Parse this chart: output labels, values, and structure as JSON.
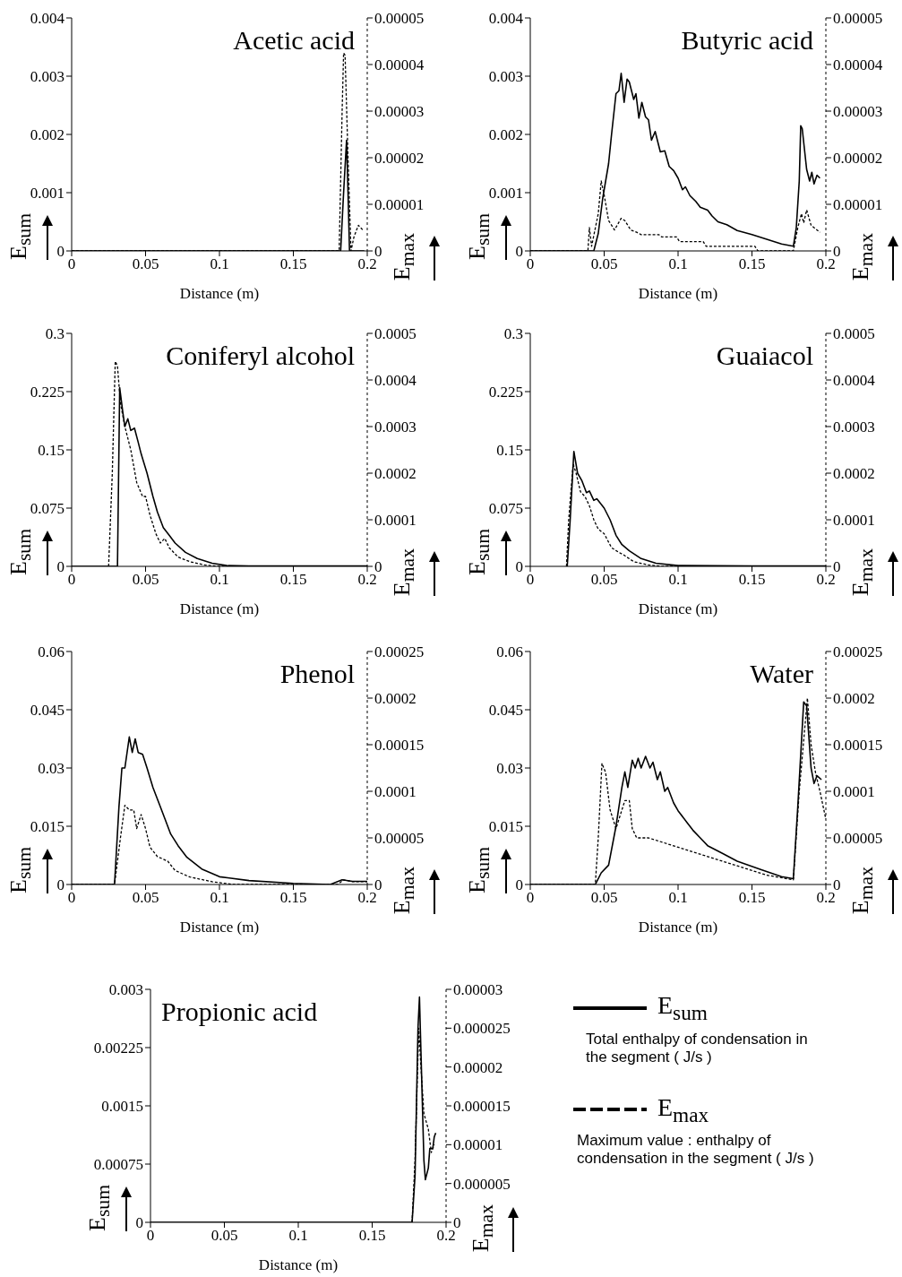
{
  "chart_data": [
    {
      "type": "line",
      "title": "Acetic acid",
      "xlabel": "Distance (m)",
      "ylabel": "E$_{sum}$",
      "y2label": "E$_{max}$",
      "xlim": [
        0,
        0.2
      ],
      "xticks": [
        0,
        0.05,
        0.1,
        0.15,
        0.2
      ],
      "ylim": [
        0,
        0.004
      ],
      "yticks": [
        0,
        0.001,
        0.002,
        0.003,
        0.004
      ],
      "y2lim": [
        0,
        5e-05
      ],
      "y2ticks": [
        0,
        {
          "value": 1e-05,
          "label": "0.00001"
        },
        {
          "value": 2e-05,
          "label": "0.00002"
        },
        {
          "value": 3e-05,
          "label": "0.00003"
        },
        {
          "value": 4e-05,
          "label": "0.00004"
        },
        {
          "value": 5e-05,
          "label": "0.00005"
        }
      ],
      "series": [
        {
          "color": "#000000",
          "line_style": "solid",
          "x": [
            0,
            0.182,
            0.184,
            0.186,
            0.187,
            0.188,
            0.192,
            0.195,
            0.198
          ],
          "values": [
            0,
            0,
            0.001,
            0.0019,
            0.001,
            0,
            0,
            0,
            0
          ]
        },
        {
          "axis": "y2",
          "color": "#000000",
          "line_style": "dashed",
          "x": [
            0,
            0.181,
            0.183,
            0.184,
            0.185,
            0.187,
            0.189,
            0.191,
            0.194,
            0.197
          ],
          "values": [
            0,
            0,
            3e-05,
            4.25e-05,
            4.2e-05,
            2e-05,
            0,
            3e-06,
            5.5e-06,
            4.5e-06
          ]
        }
      ]
    },
    {
      "type": "line",
      "title": "Butyric acid",
      "xlabel": "Distance (m)",
      "ylabel": "E$_{sum}$",
      "y2label": "E$_{max}$",
      "xlim": [
        0,
        0.2
      ],
      "xticks": [
        0,
        0.05,
        0.1,
        0.15,
        0.2
      ],
      "ylim": [
        0,
        0.004
      ],
      "yticks": [
        0,
        0.001,
        0.002,
        0.003,
        0.004
      ],
      "y2lim": [
        0,
        5e-05
      ],
      "y2ticks": [
        0,
        {
          "value": 1e-05,
          "label": "0.00001"
        },
        {
          "value": 2e-05,
          "label": "0.00002"
        },
        {
          "value": 3e-05,
          "label": "0.00003"
        },
        {
          "value": 4e-05,
          "label": "0.00004"
        },
        {
          "value": 5e-05,
          "label": "0.00005"
        }
      ],
      "series": [
        {
          "color": "#000000",
          "line_style": "solid",
          "x": [
            0,
            0.043,
            0.046,
            0.049,
            0.053,
            0.055,
            0.058,
            0.06,
            0.0615,
            0.0635,
            0.0655,
            0.067,
            0.07,
            0.0715,
            0.0735,
            0.0755,
            0.078,
            0.08,
            0.082,
            0.0845,
            0.088,
            0.091,
            0.094,
            0.097,
            0.1,
            0.103,
            0.105,
            0.108,
            0.112,
            0.115,
            0.12,
            0.123,
            0.127,
            0.133,
            0.14,
            0.15,
            0.16,
            0.17,
            0.178,
            0.18,
            0.182,
            0.183,
            0.184,
            0.187,
            0.189,
            0.1905,
            0.192,
            0.194,
            0.196
          ],
          "values": [
            0,
            0,
            0.0003,
            0.0009,
            0.0015,
            0.002,
            0.0027,
            0.00275,
            0.00305,
            0.00255,
            0.00295,
            0.0029,
            0.0026,
            0.0027,
            0.00228,
            0.00255,
            0.0023,
            0.00225,
            0.0019,
            0.00205,
            0.0017,
            0.00172,
            0.00145,
            0.00138,
            0.00125,
            0.00105,
            0.0011,
            0.00095,
            0.00085,
            0.00075,
            0.0007,
            0.0006,
            0.0005,
            0.00045,
            0.00035,
            0.00028,
            0.0002,
            0.00012,
            8e-05,
            0.0004,
            0.0012,
            0.00215,
            0.0021,
            0.0014,
            0.0012,
            0.00135,
            0.00115,
            0.0013,
            0.00125
          ]
        },
        {
          "axis": "y2",
          "color": "#000000",
          "line_style": "dashed",
          "x": [
            0,
            0.039,
            0.04,
            0.0415,
            0.046,
            0.048,
            0.05,
            0.053,
            0.057,
            0.0615,
            0.064,
            0.068,
            0.072,
            0.075,
            0.087,
            0.089,
            0.099,
            0.101,
            0.117,
            0.119,
            0.152,
            0.154,
            0.178,
            0.181,
            0.1835,
            0.185,
            0.187,
            0.19,
            0.196
          ],
          "values": [
            0,
            0,
            5e-06,
            1e-06,
            8e-06,
            1.5e-05,
            1.2e-05,
            6.5e-06,
            4.5e-06,
            7e-06,
            6.5e-06,
            4.5e-06,
            4e-06,
            3.5e-06,
            3.5e-06,
            3e-06,
            3e-06,
            2e-06,
            2e-06,
            1e-06,
            1e-06,
            0,
            0,
            5e-06,
            8e-06,
            6e-06,
            8.8e-06,
            5.5e-06,
            4e-06
          ]
        }
      ]
    },
    {
      "type": "line",
      "title": "Coniferyl alcohol",
      "xlabel": "Distance (m)",
      "ylabel": "E$_{sum}$",
      "y2label": "E$_{max}$",
      "xlim": [
        0,
        0.2
      ],
      "xticks": [
        0,
        0.05,
        0.1,
        0.15,
        0.2
      ],
      "ylim": [
        0,
        0.3
      ],
      "yticks": [
        0,
        0.075,
        0.15,
        0.225,
        0.3
      ],
      "y2lim": [
        0,
        0.0005
      ],
      "y2ticks": [
        0,
        0.0001,
        0.0002,
        0.0003,
        0.0004,
        0.0005
      ],
      "series": [
        {
          "color": "#000000",
          "line_style": "solid",
          "x": [
            0,
            0.031,
            0.0325,
            0.0345,
            0.036,
            0.038,
            0.04,
            0.0425,
            0.045,
            0.047,
            0.051,
            0.055,
            0.058,
            0.062,
            0.066,
            0.07,
            0.077,
            0.085,
            0.095,
            0.105,
            0.12,
            0.2
          ],
          "values": [
            0,
            0,
            0.23,
            0.2,
            0.18,
            0.19,
            0.175,
            0.178,
            0.16,
            0.145,
            0.12,
            0.09,
            0.07,
            0.05,
            0.04,
            0.03,
            0.018,
            0.01,
            0.004,
            0.001,
            0.0005,
            0.0005
          ]
        },
        {
          "axis": "y2",
          "color": "#000000",
          "line_style": "dashed",
          "x": [
            0.025,
            0.0275,
            0.0295,
            0.031,
            0.033,
            0.036,
            0.04,
            0.044,
            0.048,
            0.05,
            0.053,
            0.057,
            0.06,
            0.063,
            0.066,
            0.072,
            0.08,
            0.09,
            0.1,
            0.2
          ],
          "values": [
            0,
            0.0002,
            0.00044,
            0.00043,
            0.00035,
            0.0003,
            0.00025,
            0.00018,
            0.00015,
            0.00015,
            0.00011,
            7e-05,
            5e-05,
            6e-05,
            4e-05,
            2e-05,
            1e-05,
            3e-06,
            0,
            0
          ]
        }
      ]
    },
    {
      "type": "line",
      "title": "Guaiacol",
      "xlabel": "Distance (m)",
      "ylabel": "E$_{sum}$",
      "y2label": "E$_{max}$",
      "xlim": [
        0,
        0.2
      ],
      "xticks": [
        0,
        0.05,
        0.1,
        0.15,
        0.2
      ],
      "ylim": [
        0,
        0.3
      ],
      "yticks": [
        0,
        0.075,
        0.15,
        0.225,
        0.3
      ],
      "y2lim": [
        0,
        0.0005
      ],
      "y2ticks": [
        0,
        0.0001,
        0.0002,
        0.0003,
        0.0004,
        0.0005
      ],
      "series": [
        {
          "color": "#000000",
          "line_style": "solid",
          "x": [
            0.025,
            0.027,
            0.0295,
            0.032,
            0.035,
            0.038,
            0.04,
            0.043,
            0.045,
            0.048,
            0.05,
            0.054,
            0.058,
            0.062,
            0.067,
            0.075,
            0.085,
            0.1,
            0.15,
            0.2
          ],
          "values": [
            0,
            0.06,
            0.148,
            0.12,
            0.11,
            0.095,
            0.097,
            0.085,
            0.087,
            0.08,
            0.075,
            0.06,
            0.04,
            0.028,
            0.02,
            0.01,
            0.004,
            0.001,
            0.0005,
            0.0005
          ]
        },
        {
          "axis": "y2",
          "color": "#000000",
          "line_style": "dashed",
          "x": [
            0.0245,
            0.026,
            0.029,
            0.031,
            0.034,
            0.037,
            0.04,
            0.043,
            0.046,
            0.05,
            0.055,
            0.06,
            0.063,
            0.07,
            0.08,
            0.09,
            0.2
          ],
          "values": [
            0,
            0.0001,
            0.00022,
            0.0002,
            0.00016,
            0.00015,
            0.00013,
            0.0001,
            8e-05,
            7e-05,
            4e-05,
            3e-05,
            2.5e-05,
            1e-05,
            3e-06,
            0,
            0
          ]
        }
      ]
    },
    {
      "type": "line",
      "title": "Phenol",
      "xlabel": "Distance (m)",
      "ylabel": "E$_{sum}$",
      "y2label": "E$_{max}$",
      "xlim": [
        0,
        0.2
      ],
      "xticks": [
        0,
        0.05,
        0.1,
        0.15,
        0.2
      ],
      "ylim": [
        0,
        0.06
      ],
      "yticks": [
        0,
        0.015,
        0.03,
        0.045,
        0.06
      ],
      "y2lim": [
        0,
        0.00025
      ],
      "y2ticks": [
        0,
        {
          "value": 5e-05,
          "label": "0.00005"
        },
        0.0001,
        0.00015,
        0.0002,
        0.00025
      ],
      "series": [
        {
          "color": "#000000",
          "line_style": "solid",
          "x": [
            0,
            0.029,
            0.032,
            0.034,
            0.036,
            0.039,
            0.041,
            0.043,
            0.045,
            0.048,
            0.051,
            0.055,
            0.06,
            0.063,
            0.067,
            0.072,
            0.078,
            0.088,
            0.1,
            0.12,
            0.15,
            0.175,
            0.183,
            0.19,
            0.2
          ],
          "values": [
            0,
            0,
            0.02,
            0.03,
            0.03,
            0.038,
            0.034,
            0.0375,
            0.034,
            0.0335,
            0.03,
            0.025,
            0.02,
            0.017,
            0.013,
            0.01,
            0.007,
            0.004,
            0.002,
            0.001,
            0.0003,
            0,
            0.0012,
            0.0008,
            0.0008
          ]
        },
        {
          "axis": "y2",
          "color": "#000000",
          "line_style": "dashed",
          "x": [
            0,
            0.029,
            0.033,
            0.036,
            0.039,
            0.042,
            0.044,
            0.047,
            0.05,
            0.053,
            0.058,
            0.065,
            0.07,
            0.08,
            0.095,
            0.11,
            0.18,
            0.184,
            0.19,
            0.2
          ],
          "values": [
            0,
            0,
            5e-05,
            8.5e-05,
            8e-05,
            8e-05,
            6e-05,
            7.5e-05,
            6e-05,
            4e-05,
            3e-05,
            2.5e-05,
            1.5e-05,
            8e-06,
            3e-06,
            0,
            0,
            5e-06,
            3e-06,
            3e-06
          ]
        }
      ]
    },
    {
      "type": "line",
      "title": "Water",
      "xlabel": "Distance (m)",
      "ylabel": "E$_{sum}$",
      "y2label": "E$_{max}$",
      "xlim": [
        0,
        0.2
      ],
      "xticks": [
        0,
        0.05,
        0.1,
        0.15,
        0.2
      ],
      "ylim": [
        0,
        0.06
      ],
      "yticks": [
        0,
        0.015,
        0.03,
        0.045,
        0.06
      ],
      "y2lim": [
        0,
        0.00025
      ],
      "y2ticks": [
        0,
        {
          "value": 5e-05,
          "label": "0.00005"
        },
        0.0001,
        0.00015,
        0.0002,
        0.00025
      ],
      "series": [
        {
          "color": "#000000",
          "line_style": "solid",
          "x": [
            0,
            0.044,
            0.048,
            0.053,
            0.058,
            0.062,
            0.064,
            0.066,
            0.069,
            0.071,
            0.073,
            0.075,
            0.078,
            0.081,
            0.083,
            0.086,
            0.088,
            0.091,
            0.093,
            0.097,
            0.1,
            0.106,
            0.11,
            0.115,
            0.12,
            0.13,
            0.14,
            0.155,
            0.17,
            0.178,
            0.181,
            0.185,
            0.187,
            0.19,
            0.192,
            0.194,
            0.197
          ],
          "values": [
            0,
            0,
            0.003,
            0.005,
            0.015,
            0.025,
            0.029,
            0.025,
            0.032,
            0.03,
            0.0325,
            0.03,
            0.033,
            0.03,
            0.0315,
            0.027,
            0.029,
            0.024,
            0.025,
            0.021,
            0.019,
            0.016,
            0.014,
            0.012,
            0.01,
            0.008,
            0.006,
            0.004,
            0.002,
            0.0015,
            0.02,
            0.047,
            0.046,
            0.03,
            0.026,
            0.028,
            0.027
          ]
        },
        {
          "axis": "y2",
          "color": "#000000",
          "line_style": "dashed",
          "x": [
            0,
            0.044,
            0.046,
            0.0485,
            0.051,
            0.054,
            0.058,
            0.064,
            0.067,
            0.069,
            0.072,
            0.08,
            0.1,
            0.12,
            0.14,
            0.16,
            0.178,
            0.182,
            0.1875,
            0.19,
            0.193,
            0.196,
            0.2
          ],
          "values": [
            0,
            0,
            5e-05,
            0.00013,
            0.00012,
            8e-05,
            6e-05,
            9e-05,
            9e-05,
            6e-05,
            5e-05,
            5e-05,
            4e-05,
            3e-05,
            2e-05,
            1e-05,
            5e-06,
            0.0001,
            0.0002,
            0.00015,
            0.00012,
            0.0001,
            7e-05
          ]
        }
      ]
    },
    {
      "type": "line",
      "title": "Propionic acid",
      "xlabel": "Distance (m)",
      "ylabel": "E$_{sum}$",
      "y2label": "E$_{max}$",
      "xlim": [
        0,
        0.2
      ],
      "xticks": [
        0,
        0.05,
        0.1,
        0.15,
        0.2
      ],
      "ylim": [
        0,
        0.003
      ],
      "yticks": [
        0,
        0.00075,
        0.0015,
        0.00225,
        0.003
      ],
      "y2lim": [
        0,
        3e-05
      ],
      "y2ticks": [
        0,
        {
          "value": 5e-06,
          "label": "0.000005"
        },
        {
          "value": 1e-05,
          "label": "0.00001"
        },
        {
          "value": 1.5e-05,
          "label": "0.000015"
        },
        {
          "value": 2e-05,
          "label": "0.00002"
        },
        {
          "value": 2.5e-05,
          "label": "0.000025"
        },
        {
          "value": 3e-05,
          "label": "0.00003"
        }
      ],
      "series": [
        {
          "color": "#000000",
          "line_style": "solid",
          "x": [
            0,
            0.177,
            0.179,
            0.181,
            0.182,
            0.183,
            0.185,
            0.186,
            0.188,
            0.189,
            0.191,
            0.192,
            0.193
          ],
          "values": [
            0,
            0,
            0.0006,
            0.0025,
            0.0029,
            0.0022,
            0.0008,
            0.00055,
            0.0007,
            0.00095,
            0.00095,
            0.0011,
            0.00115
          ]
        },
        {
          "axis": "y2",
          "color": "#000000",
          "line_style": "dashed",
          "x": [
            0.177,
            0.179,
            0.1815,
            0.183,
            0.185,
            0.188,
            0.19,
            0.192
          ],
          "values": [
            0,
            8e-06,
            2.5e-05,
            2e-05,
            1.4e-05,
            1.2e-05,
            9e-06,
            1e-05
          ]
        }
      ]
    },
    {
      "type": "other",
      "annotations": [
        "E$_{sum}$",
        "Total enthalpy of condensation in the segment ( J/s )",
        "E$_{max}$",
        "Maximum value : enthalpy of condensation in the segment ( J/s )"
      ]
    }
  ]
}
